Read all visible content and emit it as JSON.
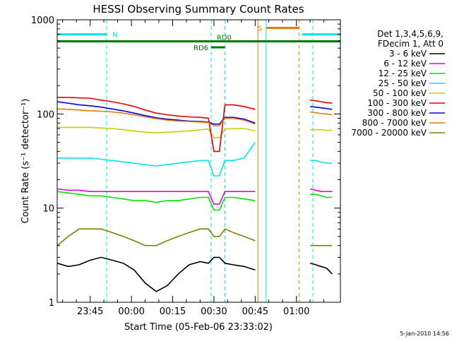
{
  "chart_data": {
    "type": "line",
    "title": "HESSI Observing Summary Count Rates",
    "xlabel": "Start Time (05-Feb-06 23:33:02)",
    "ylabel": "Count Rate (s⁻¹ detector⁻¹)",
    "timestamp": "5-Jan-2010 14:56",
    "x_unit": "minutes after 23:33:02",
    "xlim": [
      0,
      103
    ],
    "ylim": [
      1,
      1000
    ],
    "y_scale": "log",
    "x_ticks": [
      {
        "label": "23:45",
        "value": 12
      },
      {
        "label": "00:00",
        "value": 27
      },
      {
        "label": "00:15",
        "value": 42
      },
      {
        "label": "00:30",
        "value": 57
      },
      {
        "label": "00:45",
        "value": 72
      },
      {
        "label": "01:00",
        "value": 87
      }
    ],
    "y_ticks": [
      {
        "label": "1",
        "value": 1
      },
      {
        "label": "10",
        "value": 10
      },
      {
        "label": "100",
        "value": 100
      },
      {
        "label": "1000",
        "value": 1000
      }
    ],
    "legend": {
      "placement": "right",
      "header": [
        "Det 1,3,4,5,6,9,",
        "FDecim 1, Att 0"
      ]
    },
    "flags": [
      {
        "label": "N",
        "color": "#00e5e5",
        "segments": [
          [
            0,
            18
          ],
          [
            89,
            103
          ]
        ],
        "level": 700
      },
      {
        "label": "S",
        "color": "#e87a00",
        "segments": [
          [
            76,
            88
          ]
        ],
        "level": 820
      },
      {
        "label": "RD0",
        "color": "#007a00",
        "segments": [
          [
            0,
            103
          ]
        ],
        "level": 590
      },
      {
        "label": "RD6",
        "color": "#007a00",
        "segments": [
          [
            56,
            61
          ]
        ],
        "level": 510
      }
    ],
    "vlines": [
      {
        "x": 18,
        "color": "#00e5e5",
        "style": "dashed"
      },
      {
        "x": 56,
        "color": "#00e5e5",
        "style": "dashed"
      },
      {
        "x": 61,
        "color": "#00e5e5",
        "style": "dashed"
      },
      {
        "x": 73,
        "color": "#e87a00",
        "style": "solid"
      },
      {
        "x": 76,
        "color": "#00e5e5",
        "style": "solid"
      },
      {
        "x": 88,
        "color": "#e87a00",
        "style": "dashed"
      },
      {
        "x": 93,
        "color": "#00e5e5",
        "style": "dashed"
      }
    ],
    "x": [
      0,
      4,
      8,
      12,
      16,
      20,
      24,
      28,
      32,
      36,
      40,
      44,
      48,
      52,
      55,
      57,
      59,
      61,
      64,
      68,
      72,
      92,
      94,
      96,
      98,
      100
    ],
    "series": [
      {
        "name": "3 - 6 keV",
        "color": "#000000",
        "values": [
          2.6,
          2.4,
          2.5,
          2.8,
          3.0,
          2.8,
          2.6,
          2.2,
          1.6,
          1.3,
          1.5,
          2.0,
          2.5,
          2.7,
          2.6,
          3.0,
          3.0,
          2.6,
          2.5,
          2.4,
          2.2,
          2.6,
          2.5,
          2.4,
          2.3,
          2.0
        ]
      },
      {
        "name": "6 - 12 keV",
        "color": "#e600e6",
        "values": [
          16,
          15.5,
          15.5,
          15,
          15,
          15,
          15,
          15,
          15,
          15,
          15,
          15,
          15,
          15,
          15,
          11,
          11,
          15,
          15,
          15,
          15,
          16,
          15.5,
          15,
          15,
          15
        ]
      },
      {
        "name": "12 - 25 keV",
        "color": "#00e600",
        "values": [
          15,
          14.5,
          14,
          13.5,
          13.5,
          13,
          12.5,
          12,
          12,
          11.5,
          12,
          12,
          12.5,
          13,
          13,
          9.5,
          9.5,
          13,
          13,
          12.5,
          12,
          14,
          14,
          13.5,
          13,
          13
        ]
      },
      {
        "name": "25 - 50 keV",
        "color": "#00e5e5",
        "values": [
          34,
          34,
          34,
          34,
          33,
          32,
          31,
          30,
          29,
          28,
          29,
          30,
          31,
          32,
          32,
          22,
          22,
          32,
          32,
          34,
          50,
          32,
          32,
          31,
          30,
          30
        ]
      },
      {
        "name": "50 - 100 keV",
        "color": "#cccc00",
        "values": [
          72,
          72,
          72,
          72,
          71,
          70,
          68,
          66,
          64,
          63,
          64,
          65,
          66,
          68,
          69,
          56,
          56,
          69,
          70,
          70,
          66,
          68,
          68,
          68,
          67,
          67
        ]
      },
      {
        "name": "100 - 300 keV",
        "color": "#e60000",
        "values": [
          150,
          150,
          148,
          147,
          140,
          135,
          128,
          120,
          110,
          102,
          98,
          95,
          93,
          92,
          90,
          40,
          40,
          125,
          125,
          120,
          112,
          140,
          138,
          135,
          132,
          130
        ]
      },
      {
        "name": "300 - 800 keV",
        "color": "#0000e6",
        "values": [
          135,
          130,
          125,
          122,
          118,
          113,
          108,
          102,
          96,
          91,
          88,
          86,
          84,
          83,
          82,
          78,
          78,
          92,
          92,
          88,
          80,
          120,
          118,
          116,
          114,
          112
        ]
      },
      {
        "name": "800 - 7000 keV",
        "color": "#e87a00",
        "values": [
          113,
          112,
          110,
          108,
          107,
          105,
          102,
          98,
          93,
          89,
          86,
          84,
          83,
          82,
          81,
          75,
          75,
          90,
          90,
          86,
          78,
          105,
          103,
          101,
          100,
          98
        ]
      },
      {
        "name": "7000 - 20000 keV",
        "color": "#808000",
        "values": [
          4,
          5,
          6,
          6,
          6,
          5.5,
          5,
          4.5,
          4,
          4,
          4.5,
          5,
          5.5,
          6,
          6,
          5,
          5,
          6,
          5.5,
          5,
          4.5,
          4,
          4,
          4,
          4,
          4
        ]
      }
    ]
  }
}
